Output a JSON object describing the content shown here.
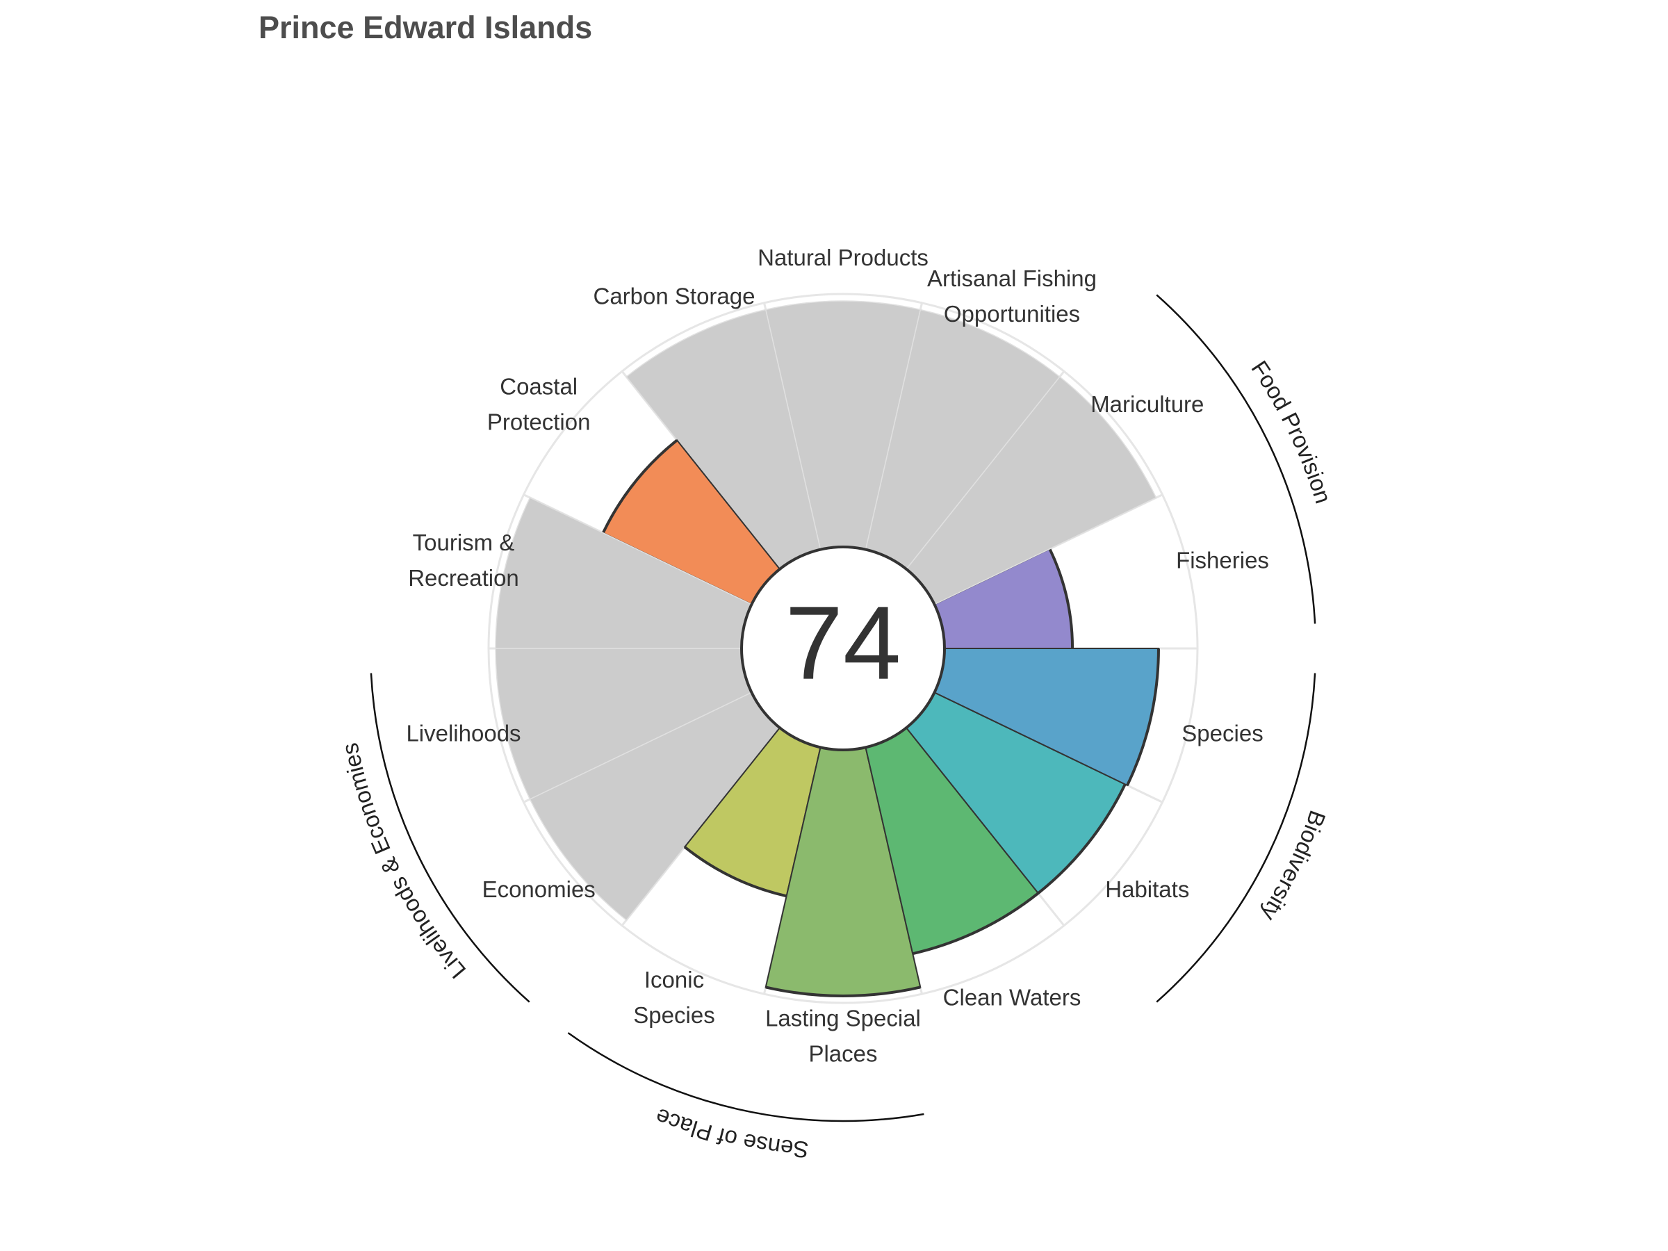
{
  "chart_data": {
    "type": "polar-bar",
    "title": "Prince Edward Islands",
    "score": "74",
    "rmax": 100,
    "categories": [
      {
        "label": [
          "Fisheries"
        ],
        "value": 52,
        "color": "#9389cd",
        "na": false
      },
      {
        "label": [
          "Mariculture"
        ],
        "value": 100,
        "color": "#cccccc",
        "na": true
      },
      {
        "label": [
          "Artisanal Fishing",
          "Opportunities"
        ],
        "value": 100,
        "color": "#cccccc",
        "na": true
      },
      {
        "label": [
          "Natural Products"
        ],
        "value": 100,
        "color": "#cccccc",
        "na": true
      },
      {
        "label": [
          "Carbon Storage"
        ],
        "value": 100,
        "color": "#cccccc",
        "na": true
      },
      {
        "label": [
          "Coastal",
          "Protection"
        ],
        "value": 67,
        "color": "#f28c57",
        "na": false
      },
      {
        "label": [
          "Tourism &",
          "Recreation"
        ],
        "value": 100,
        "color": "#cccccc",
        "na": true
      },
      {
        "label": [
          "Livelihoods"
        ],
        "value": 100,
        "color": "#cccccc",
        "na": true
      },
      {
        "label": [
          "Economies"
        ],
        "value": 100,
        "color": "#cccccc",
        "na": true
      },
      {
        "label": [
          "Iconic",
          "Species"
        ],
        "value": 62,
        "color": "#bfc862",
        "na": false
      },
      {
        "label": [
          "Lasting Special",
          "Places"
        ],
        "value": 100,
        "color": "#8bba6d",
        "na": false
      },
      {
        "label": [
          "Clean Waters"
        ],
        "value": 86,
        "color": "#5db872",
        "na": false
      },
      {
        "label": [
          "Habitats"
        ],
        "value": 86,
        "color": "#4db8bb",
        "na": false
      },
      {
        "label": [
          "Species"
        ],
        "value": 87,
        "color": "#59a3ca",
        "na": false
      }
    ],
    "groups": [
      {
        "name": "Food Provision",
        "from": 0,
        "to": 2
      },
      {
        "name": "Biodiversity",
        "from": 12,
        "to": 14
      },
      {
        "name": "Sense of Place",
        "from": 9,
        "to": 11
      },
      {
        "name": "Livelihoods & Economies",
        "from": 7,
        "to": 9
      }
    ]
  }
}
